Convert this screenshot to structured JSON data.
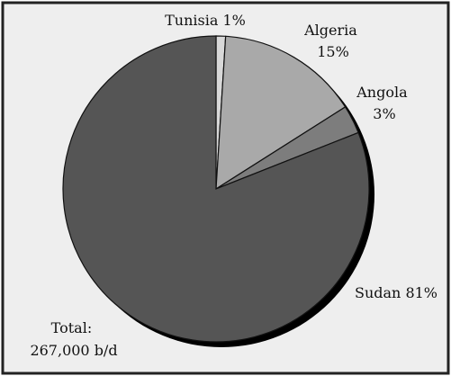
{
  "chart_data": {
    "type": "pie",
    "slices": [
      {
        "name": "Tunisia",
        "value": 1,
        "label": "Tunisia 1%",
        "color": "#d8d8d8"
      },
      {
        "name": "Algeria",
        "value": 15,
        "label_lines": [
          "Algeria",
          "15%"
        ],
        "color": "#a9a9a9"
      },
      {
        "name": "Angola",
        "value": 3,
        "label_lines": [
          "Angola",
          "3%"
        ],
        "color": "#7d7d7d"
      },
      {
        "name": "Sudan",
        "value": 81,
        "label": "Sudan 81%",
        "color": "#555555"
      }
    ],
    "total_label_lines": [
      "Total:",
      "267,000 b/d"
    ],
    "start_angle_deg": 0,
    "direction": "clockwise",
    "frame_fill": "#eeeeee",
    "frame_border": "#222222",
    "shadow_color": "#000000"
  }
}
